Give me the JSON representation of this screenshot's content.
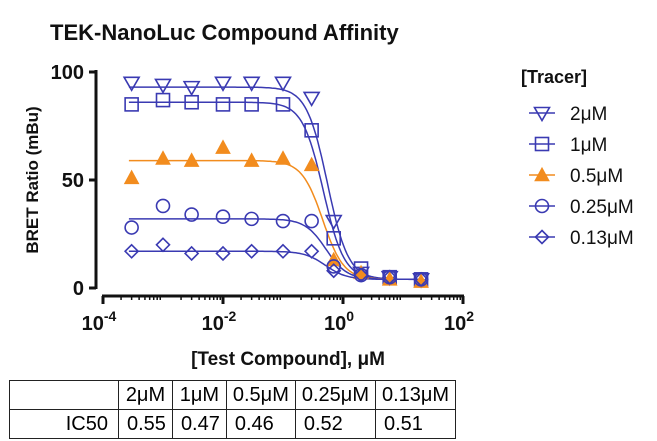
{
  "chart_data": {
    "type": "scatter",
    "title": "TEK-NanoLuc Compound Affinity",
    "xlabel": "[Test Compound], μM",
    "ylabel": "BRET Ratio (mBu)",
    "xscale": "log",
    "xlim": [
      0.0001,
      100
    ],
    "ylim": [
      0,
      100
    ],
    "xticks": [
      {
        "value": 0.0001,
        "base": "10",
        "exp": "-4"
      },
      {
        "value": 0.01,
        "base": "10",
        "exp": "-2"
      },
      {
        "value": 1,
        "base": "10",
        "exp": "0"
      },
      {
        "value": 100,
        "base": "10",
        "exp": "2"
      }
    ],
    "yticks": [
      0,
      50,
      100
    ],
    "legend_title": "[Tracer]",
    "legend_position": "right",
    "grid": false,
    "x": [
      0.0003,
      0.001,
      0.003,
      0.01,
      0.03,
      0.1,
      0.3,
      0.7,
      2,
      6,
      20
    ],
    "series": [
      {
        "name": "2μM",
        "marker": "triangle-down",
        "color": "#3a3ab2",
        "values": [
          95,
          94,
          93,
          95,
          95,
          95,
          88,
          31,
          7,
          5,
          4
        ],
        "fit": {
          "top": 93,
          "bottom": 4,
          "ic50": 0.55,
          "hill": -2.5
        }
      },
      {
        "name": "1μM",
        "marker": "square",
        "color": "#3a3ab2",
        "values": [
          85,
          87,
          86,
          85,
          85,
          85,
          73,
          23,
          9,
          5,
          4
        ],
        "fit": {
          "top": 86,
          "bottom": 4,
          "ic50": 0.47,
          "hill": -2.5
        }
      },
      {
        "name": "0.5μM",
        "marker": "triangle-up",
        "color": "#f28c1e",
        "values": [
          51,
          60,
          59,
          65,
          59,
          60,
          57,
          13,
          7,
          4,
          3
        ],
        "fit": {
          "top": 59,
          "bottom": 4,
          "ic50": 0.46,
          "hill": -2.5
        }
      },
      {
        "name": "0.25μM",
        "marker": "circle",
        "color": "#3a3ab2",
        "values": [
          28,
          38,
          34,
          33,
          32,
          31,
          31,
          10,
          6,
          5,
          4
        ],
        "fit": {
          "top": 32,
          "bottom": 4,
          "ic50": 0.52,
          "hill": -2.5
        }
      },
      {
        "name": "0.13μM",
        "marker": "diamond",
        "color": "#3a3ab2",
        "values": [
          17,
          20,
          16,
          16,
          17,
          17,
          17,
          8,
          6,
          5,
          4
        ],
        "fit": {
          "top": 17,
          "bottom": 4,
          "ic50": 0.51,
          "hill": -2.5
        }
      }
    ]
  },
  "ic50_table": {
    "row_label": "IC50",
    "headers": [
      "2μM",
      "1μM",
      "0.5μM",
      "0.25μM",
      "0.13μM"
    ],
    "values": [
      "0.55",
      "0.47",
      "0.46",
      "0.52",
      "0.51"
    ]
  }
}
